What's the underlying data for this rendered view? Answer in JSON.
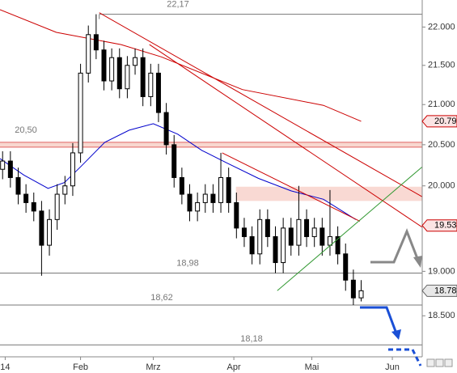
{
  "chart_data": {
    "type": "candlestick",
    "log_scale": true,
    "xlim": [
      0,
      162.5
    ],
    "ylim": [
      18.05,
      22.36
    ],
    "xticks": [
      {
        "value": 2,
        "label": "14"
      },
      {
        "value": 31,
        "label": "Feb"
      },
      {
        "value": 59,
        "label": "Mrz"
      },
      {
        "value": 90,
        "label": "Apr"
      },
      {
        "value": 120,
        "label": "Mai"
      },
      {
        "value": 151,
        "label": "Jun"
      }
    ],
    "yticks": [
      {
        "value": 18.5,
        "label": "18.500"
      },
      {
        "value": 19,
        "label": "19.000"
      },
      {
        "value": 20,
        "label": "20.000"
      },
      {
        "value": 20.5,
        "label": "20.500"
      },
      {
        "value": 21,
        "label": "21.000"
      },
      {
        "value": 21.5,
        "label": "21.500"
      },
      {
        "value": 22,
        "label": "22.000"
      }
    ],
    "x": [
      1,
      4,
      7,
      10,
      13,
      16,
      19,
      22,
      25,
      28,
      31,
      34,
      37,
      40,
      43,
      46,
      49,
      52,
      55,
      58,
      61,
      64,
      67,
      70,
      73,
      76,
      79,
      82,
      85,
      88,
      91,
      94,
      97,
      100,
      103,
      106,
      109,
      112,
      115,
      118,
      121,
      124,
      127,
      130,
      133,
      136,
      139
    ],
    "open": [
      20.2,
      20.3,
      20.1,
      19.9,
      19.8,
      19.7,
      19.3,
      19.6,
      19.9,
      20.0,
      20.4,
      21.4,
      21.9,
      21.7,
      21.3,
      21.6,
      21.2,
      21.5,
      21.6,
      21.1,
      21.4,
      20.9,
      20.5,
      20.1,
      19.9,
      19.7,
      19.8,
      19.9,
      19.8,
      20.1,
      19.8,
      19.5,
      19.4,
      19.2,
      19.6,
      19.4,
      19.1,
      19.5,
      19.3,
      19.6,
      19.4,
      19.5,
      19.3,
      19.4,
      19.2,
      18.9,
      18.7
    ],
    "high": [
      20.42,
      20.42,
      20.22,
      20.02,
      19.92,
      19.82,
      19.72,
      20.02,
      20.12,
      20.52,
      21.52,
      22.02,
      22.17,
      21.82,
      21.72,
      21.72,
      21.62,
      21.72,
      21.72,
      21.52,
      21.52,
      21.02,
      20.62,
      20.22,
      20.02,
      19.92,
      20.02,
      20.02,
      20.4,
      20.22,
      19.92,
      19.62,
      19.52,
      19.72,
      19.72,
      19.52,
      19.62,
      19.62,
      20.0,
      19.72,
      19.62,
      19.62,
      19.95,
      19.52,
      19.32,
      19.02,
      18.9
    ],
    "low": [
      20.08,
      19.98,
      19.78,
      19.68,
      19.58,
      18.95,
      19.18,
      19.48,
      19.78,
      19.88,
      20.28,
      21.28,
      21.58,
      21.18,
      21.18,
      21.08,
      21.08,
      21.38,
      20.98,
      20.98,
      20.78,
      20.38,
      19.98,
      19.78,
      19.58,
      19.58,
      19.68,
      19.68,
      19.68,
      19.68,
      19.38,
      19.28,
      19.08,
      19.08,
      19.28,
      18.98,
      18.98,
      19.18,
      19.18,
      19.28,
      19.28,
      19.18,
      19.18,
      19.08,
      18.78,
      18.62,
      18.66
    ],
    "close": [
      20.3,
      20.1,
      19.9,
      19.8,
      19.7,
      19.3,
      19.6,
      19.9,
      20.0,
      20.4,
      21.4,
      21.9,
      21.7,
      21.3,
      21.6,
      21.2,
      21.5,
      21.6,
      21.1,
      21.4,
      20.9,
      20.5,
      20.1,
      19.9,
      19.7,
      19.8,
      19.9,
      19.8,
      20.1,
      19.8,
      19.5,
      19.4,
      19.2,
      19.6,
      19.4,
      19.1,
      19.5,
      19.3,
      19.6,
      19.4,
      19.5,
      19.3,
      19.4,
      19.2,
      18.9,
      18.7,
      18.78
    ],
    "up_color": "#ffffff",
    "down_color": "#000000",
    "series": [
      {
        "color": "#cc0000",
        "x": [
          0,
          21.7,
          46.6,
          62.1,
          93.3,
          124.5,
          139
        ],
        "values": [
          22.23,
          21.93,
          21.77,
          21.61,
          21.19,
          20.99,
          20.79
        ]
      },
      {
        "color": "#0000cc",
        "x": [
          0,
          9.2,
          18.5,
          24.8,
          31,
          40.3,
          49.7,
          59,
          68.4,
          77.7,
          87.1,
          99.5,
          112,
          124.5,
          136.9
        ],
        "values": [
          20.33,
          20.13,
          19.97,
          20.04,
          20.23,
          20.53,
          20.68,
          20.76,
          20.63,
          20.43,
          20.28,
          20.09,
          19.94,
          19.84,
          19.6
        ]
      }
    ],
    "trend_lines": [
      {
        "color": "#cc0000",
        "x": [
          38.2,
          162.5
        ],
        "y": [
          22.19,
          19.87
        ]
      },
      {
        "color": "#cc0000",
        "x": [
          57.5,
          162.5
        ],
        "y": [
          21.77,
          19.51
        ]
      },
      {
        "color": "#cc0000",
        "x": [
          85.5,
          138.5
        ],
        "y": [
          20.4,
          19.58
        ]
      },
      {
        "color": "#339933",
        "x": [
          106.7,
          162.5
        ],
        "y": [
          18.78,
          20.23
        ]
      }
    ],
    "zone": {
      "x": [
        90.8,
        162.5
      ],
      "y": [
        19.82,
        19.99
      ],
      "color": "#f8d0c8"
    },
    "levels": [
      {
        "value": 22.17,
        "label": "22,17",
        "start": 38.2
      },
      {
        "value": 20.5,
        "label": "20,50",
        "start": 0
      },
      {
        "value": 18.98,
        "label": "18,98",
        "start": 0
      },
      {
        "value": 18.62,
        "label": "18,62",
        "start": 0
      },
      {
        "value": 18.18,
        "label": "18,18",
        "start": 0
      }
    ],
    "price_tags": [
      20.79,
      19.53,
      18.78
    ]
  }
}
